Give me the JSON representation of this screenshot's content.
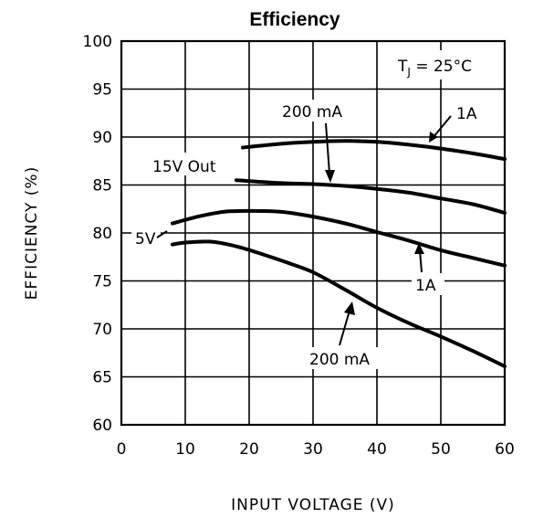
{
  "chart_data": {
    "type": "line",
    "title": "Efficiency",
    "xlabel": "INPUT VOLTAGE (V)",
    "ylabel": "EFFICIENCY (%)",
    "xlim": [
      0,
      60
    ],
    "ylim": [
      60,
      100
    ],
    "xticks": [
      "0",
      "10",
      "20",
      "30",
      "40",
      "50",
      "60"
    ],
    "yticks": [
      "60",
      "65",
      "70",
      "75",
      "80",
      "85",
      "90",
      "95",
      "100"
    ],
    "grid": true,
    "annotation_box": {
      "prefix": "T",
      "subscript": "J",
      "rest": " = 25°C"
    },
    "series": [
      {
        "label": "1A",
        "group": "15V Out",
        "x": [
          19,
          25,
          30,
          35,
          40,
          45,
          50,
          55,
          60
        ],
        "y": [
          88.9,
          89.3,
          89.5,
          89.6,
          89.5,
          89.2,
          88.8,
          88.3,
          87.7
        ]
      },
      {
        "label": "200 mA",
        "group": "15V Out",
        "x": [
          18,
          25,
          30,
          35,
          40,
          45,
          50,
          55,
          60
        ],
        "y": [
          85.5,
          85.2,
          85.1,
          84.9,
          84.6,
          84.2,
          83.6,
          83.0,
          82.1
        ]
      },
      {
        "label": "1A",
        "group": "5V",
        "x": [
          8,
          12,
          16,
          20,
          25,
          30,
          35,
          40,
          45,
          50,
          55,
          60
        ],
        "y": [
          81.0,
          81.7,
          82.2,
          82.3,
          82.2,
          81.7,
          81.0,
          80.1,
          79.2,
          78.2,
          77.4,
          76.6
        ]
      },
      {
        "label": "200 mA",
        "group": "5V",
        "x": [
          8,
          10,
          14,
          18,
          22,
          26,
          30,
          35,
          40,
          45,
          50,
          55,
          60
        ],
        "y": [
          78.8,
          79.0,
          79.1,
          78.6,
          77.8,
          76.9,
          75.9,
          74.1,
          72.2,
          70.6,
          69.2,
          67.7,
          66.1
        ]
      }
    ],
    "labels": {
      "out15": "15V Out",
      "out5": "5V",
      "a1_top": "1A",
      "ma200_top": "200 mA",
      "a1_bottom": "1A",
      "ma200_bottom": "200 mA"
    }
  }
}
